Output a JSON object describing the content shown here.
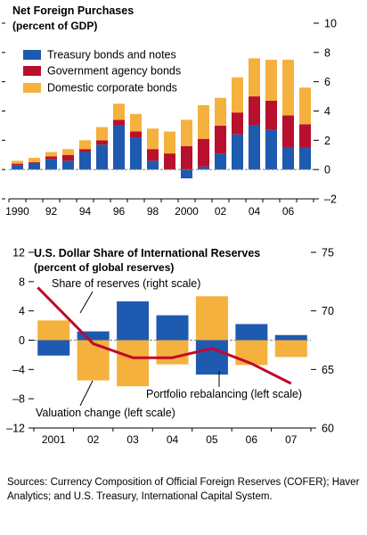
{
  "colors": {
    "treasury": "#1d5ab0",
    "agency": "#b8102d",
    "corporate": "#f5b13d",
    "reserve_line": "#c1082e",
    "axis": "#000000",
    "grid": "#7f7f7f"
  },
  "chart_data": [
    {
      "type": "bar",
      "stacked": true,
      "title": "Net Foreign Purchases",
      "subtitle": "(percent of GDP)",
      "x": [
        1990,
        1991,
        1992,
        1993,
        1994,
        1995,
        1996,
        1997,
        1998,
        1999,
        2000,
        2001,
        2002,
        2003,
        2004,
        2005,
        2006,
        2007
      ],
      "xtick_labels": [
        "1990",
        "92",
        "94",
        "96",
        "98",
        "2000",
        "02",
        "04",
        "06"
      ],
      "series": [
        {
          "name": "Treasury bonds and notes",
          "color": "treasury",
          "values": [
            0.3,
            0.4,
            0.7,
            0.6,
            1.2,
            1.7,
            3.0,
            2.2,
            0.6,
            0.0,
            -0.6,
            0.2,
            1.1,
            2.4,
            3.0,
            2.7,
            1.5,
            1.5
          ]
        },
        {
          "name": "Government agency bonds",
          "color": "agency",
          "values": [
            0.1,
            0.1,
            0.2,
            0.4,
            0.2,
            0.3,
            0.4,
            0.4,
            0.8,
            1.1,
            1.6,
            1.9,
            1.9,
            1.5,
            2.0,
            2.0,
            2.2,
            1.6
          ]
        },
        {
          "name": "Domestic corporate bonds",
          "color": "corporate",
          "values": [
            0.2,
            0.3,
            0.3,
            0.4,
            0.6,
            0.9,
            1.1,
            1.2,
            1.4,
            1.5,
            1.8,
            2.3,
            1.9,
            2.4,
            2.6,
            2.8,
            3.8,
            2.5
          ]
        }
      ],
      "yticks": [
        "10",
        "8",
        "6",
        "4",
        "2",
        "0",
        "–2"
      ],
      "ylim": [
        -2,
        10
      ],
      "grid": false,
      "legend": "top-left",
      "axis_side": "right"
    },
    {
      "type": "bar",
      "title": "U.S. Dollar Share of International Reserves",
      "subtitle": "(percent of global reserves)",
      "categories": [
        "2001",
        "02",
        "03",
        "04",
        "05",
        "06",
        "07"
      ],
      "series": [
        {
          "name": "Valuation change (left scale)",
          "color": "corporate",
          "axis": "left",
          "values": [
            2.7,
            -5.5,
            -6.3,
            -3.3,
            6.0,
            -3.4,
            -2.3
          ]
        },
        {
          "name": "Portfolio rebalancing (left scale)",
          "color": "treasury",
          "axis": "left",
          "values": [
            -2.1,
            1.2,
            5.3,
            3.4,
            -4.7,
            2.2,
            0.7
          ]
        },
        {
          "name": "Share of reserves (right scale)",
          "color": "reserve_line",
          "axis": "right",
          "type": "line",
          "x": [
            2000.6,
            2002,
            2003,
            2004,
            2005,
            2006,
            2007
          ],
          "values": [
            72.0,
            67.2,
            66.0,
            66.0,
            66.8,
            65.5,
            63.8
          ]
        }
      ],
      "ylim_left": [
        -12,
        12
      ],
      "ylim_right": [
        60,
        75
      ],
      "yticks_left": [
        "12",
        "8",
        "4",
        "0",
        "–4",
        "–8",
        "–12"
      ],
      "yticks_right": [
        "75",
        "70",
        "65",
        "60"
      ],
      "grid": false
    }
  ],
  "sources": {
    "label": "Sources:",
    "text": " Currency Composition of Official Foreign Reserves (COFER); Haver Analytics; and U.S. Treasury, International Capital System."
  }
}
